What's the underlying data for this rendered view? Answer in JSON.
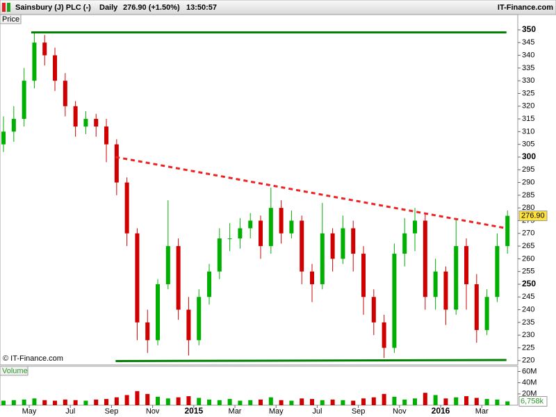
{
  "header": {
    "name": "Sainsbury (J) PLC (-)",
    "period": "Daily",
    "quote": "276.90 (+1.50%)",
    "time": "13:50:57",
    "brand": "IT-Finance.com"
  },
  "chart_data": {
    "type": "candlestick",
    "panel_label": "Price",
    "watermark": "© IT-Finance.com",
    "xlim": [
      -0.42,
      24.75
    ],
    "xticks": [
      {
        "value": 1,
        "label": "May"
      },
      {
        "value": 3,
        "label": "Jul"
      },
      {
        "value": 5,
        "label": "Sep"
      },
      {
        "value": 7,
        "label": "Nov"
      },
      {
        "value": 9,
        "label": "2015"
      },
      {
        "value": 11,
        "label": "Mar"
      },
      {
        "value": 13,
        "label": "May"
      },
      {
        "value": 15,
        "label": "Jul"
      },
      {
        "value": 17,
        "label": "Sep"
      },
      {
        "value": 19,
        "label": "Nov"
      },
      {
        "value": 21,
        "label": "2016"
      },
      {
        "value": 23,
        "label": "Mar"
      }
    ],
    "ylim": [
      218.3,
      356
    ],
    "yticks": [
      220,
      225,
      230,
      235,
      240,
      245,
      250,
      255,
      260,
      265,
      270,
      275,
      280,
      285,
      290,
      295,
      300,
      305,
      310,
      315,
      320,
      325,
      330,
      335,
      340,
      345,
      350
    ],
    "x": [
      -0.25,
      0.25,
      0.75,
      1.25,
      1.75,
      2.25,
      2.75,
      3.25,
      3.75,
      4.25,
      4.75,
      5.25,
      5.75,
      6.25,
      6.75,
      7.25,
      7.75,
      8.25,
      8.75,
      9.25,
      9.75,
      10.25,
      10.75,
      11.25,
      11.75,
      12.25,
      12.75,
      13.25,
      13.75,
      14.25,
      14.75,
      15.25,
      15.75,
      16.25,
      16.75,
      17.25,
      17.75,
      18.25,
      18.75,
      19.25,
      19.75,
      20.25,
      20.75,
      21.25,
      21.75,
      22.25,
      22.75,
      23.25,
      23.75,
      24.25
    ],
    "open": [
      305,
      310,
      315,
      330,
      345,
      340,
      330,
      320,
      312,
      315,
      312,
      305,
      290,
      270,
      235,
      228,
      250,
      265,
      240,
      228,
      245,
      255,
      268,
      268,
      272,
      275,
      265,
      280,
      270,
      275,
      255,
      250,
      270,
      260,
      272,
      262,
      245,
      235,
      225,
      262,
      270,
      275,
      245,
      255,
      240,
      265,
      250,
      232,
      245,
      265
    ],
    "high": [
      316,
      320,
      335,
      349,
      348,
      343,
      333,
      322,
      318,
      317,
      315,
      307,
      292,
      272,
      240,
      252,
      283,
      268,
      245,
      248,
      258,
      272,
      274,
      276,
      278,
      277,
      288,
      283,
      279,
      277,
      258,
      282,
      272,
      277,
      275,
      265,
      248,
      238,
      266,
      276,
      280,
      278,
      260,
      257,
      276,
      268,
      254,
      248,
      270,
      279
    ],
    "low": [
      302,
      306,
      312,
      327,
      336,
      326,
      316,
      308,
      309,
      308,
      298,
      285,
      265,
      228,
      223,
      226,
      248,
      236,
      222,
      226,
      242,
      252,
      263,
      264,
      268,
      260,
      262,
      266,
      268,
      250,
      243,
      248,
      255,
      258,
      255,
      238,
      230,
      221,
      223,
      257,
      263,
      240,
      240,
      234,
      238,
      240,
      227,
      230,
      243,
      262
    ],
    "close": [
      310,
      315,
      330,
      345,
      340,
      330,
      320,
      312,
      315,
      312,
      305,
      290,
      270,
      235,
      228,
      250,
      265,
      240,
      228,
      245,
      255,
      268,
      268,
      272,
      275,
      265,
      280,
      270,
      275,
      255,
      250,
      270,
      260,
      272,
      262,
      245,
      235,
      225,
      262,
      270,
      275,
      245,
      255,
      240,
      265,
      250,
      232,
      245,
      265,
      276.9
    ],
    "last_label": "276.90",
    "up_color": "#00b000",
    "down_color": "#d00000",
    "lines": [
      {
        "x": [
          1.1,
          24.2
        ],
        "y": [
          349,
          349
        ],
        "color": "#008000",
        "dash": false
      },
      {
        "x": [
          5.2,
          24.2
        ],
        "y": [
          219.8,
          220.2
        ],
        "color": "#008000",
        "dash": false
      },
      {
        "x": [
          5.2,
          24.2
        ],
        "y": [
          300,
          272
        ],
        "color": "#ee2222",
        "dash": true
      }
    ],
    "volume": {
      "name": "Volume",
      "ylim": [
        0,
        68
      ],
      "yticks": [
        {
          "value": 20,
          "label": "20M"
        },
        {
          "value": 40,
          "label": "40M"
        },
        {
          "value": 60,
          "label": "60M"
        }
      ],
      "values": [
        8,
        9,
        10,
        12,
        9,
        8,
        10,
        9,
        8,
        10,
        11,
        14,
        18,
        25,
        20,
        15,
        12,
        14,
        16,
        13,
        10,
        9,
        11,
        8,
        9,
        10,
        14,
        9,
        8,
        12,
        11,
        9,
        10,
        9,
        8,
        12,
        14,
        20,
        15,
        10,
        12,
        22,
        18,
        12,
        14,
        16,
        13,
        11,
        10,
        6.758
      ],
      "last_label": "6,758k"
    }
  }
}
